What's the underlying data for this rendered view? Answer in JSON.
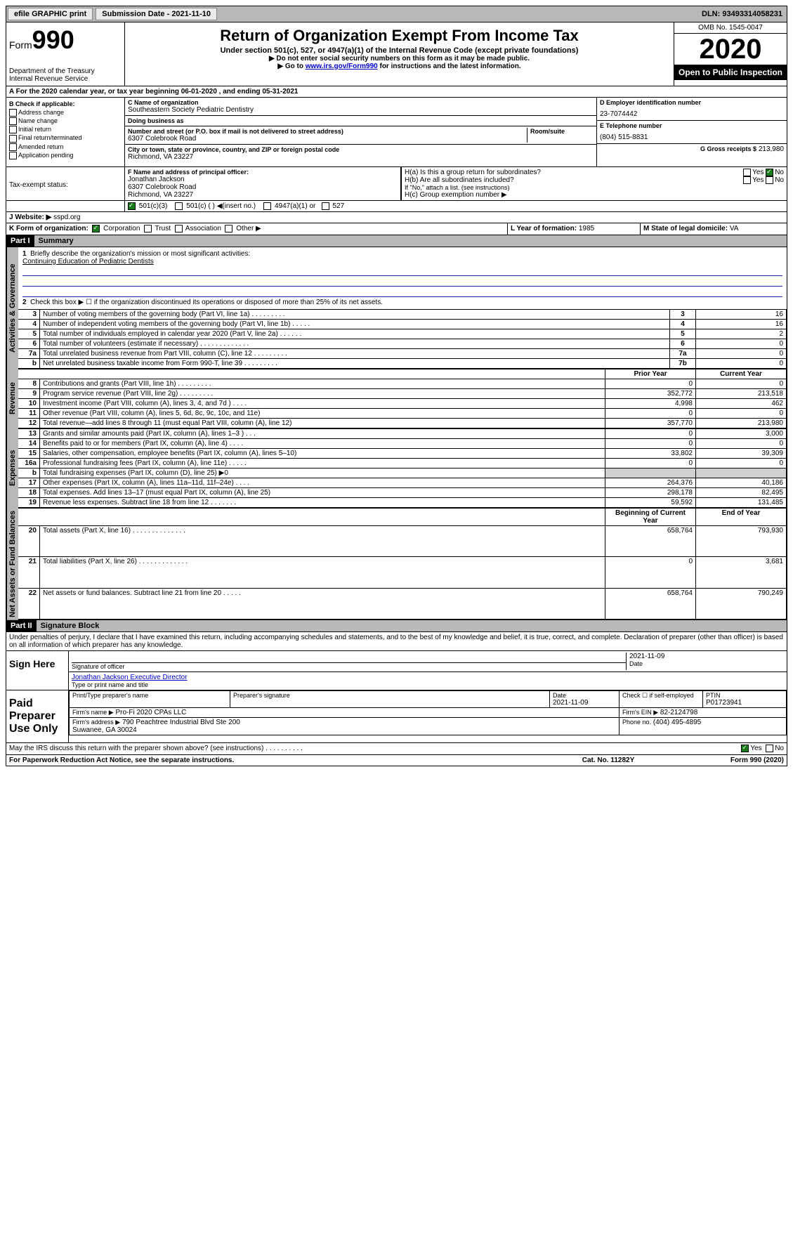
{
  "topbar": {
    "efile": "efile GRAPHIC print",
    "submission": "Submission Date - 2021-11-10",
    "dln": "DLN: 93493314058231"
  },
  "header": {
    "form_word": "Form",
    "form_num": "990",
    "dept": "Department of the Treasury\nInternal Revenue Service",
    "title": "Return of Organization Exempt From Income Tax",
    "sub1": "Under section 501(c), 527, or 4947(a)(1) of the Internal Revenue Code (except private foundations)",
    "sub2a": "Do not enter social security numbers on this form as it may be made public.",
    "sub2b_pre": "Go to ",
    "sub2b_link": "www.irs.gov/Form990",
    "sub2b_post": " for instructions and the latest information.",
    "omb": "OMB No. 1545-0047",
    "year": "2020",
    "inspect": "Open to Public Inspection"
  },
  "row_a": "A For the 2020 calendar year, or tax year beginning 06-01-2020    , and ending 05-31-2021",
  "col_b": {
    "hdr": "B Check if applicable:",
    "items": [
      "Address change",
      "Name change",
      "Initial return",
      "Final return/terminated",
      "Amended return",
      "Application pending"
    ]
  },
  "col_c": {
    "name_lbl": "C Name of organization",
    "name": "Southeastern Society Pediatric Dentistry",
    "dba_lbl": "Doing business as",
    "dba": "",
    "addr_lbl": "Number and street (or P.O. box if mail is not delivered to street address)",
    "room_lbl": "Room/suite",
    "addr": "6307 Colebrook Road",
    "city_lbl": "City or town, state or province, country, and ZIP or foreign postal code",
    "city": "Richmond, VA  23227"
  },
  "col_d": {
    "ein_lbl": "D Employer identification number",
    "ein": "23-7074442",
    "tel_lbl": "E Telephone number",
    "tel": "(804) 515-8831",
    "gross_lbl": "G Gross receipts $",
    "gross": "213,980"
  },
  "section_f": {
    "lbl": "F  Name and address of principal officer:",
    "name": "Jonathan Jackson",
    "addr1": "6307 Colebrook Road",
    "addr2": "Richmond, VA  23227"
  },
  "section_h": {
    "ha": "H(a)  Is this a group return for subordinates?",
    "hb": "H(b)  Are all subordinates included?",
    "hb_note": "If \"No,\" attach a list. (see instructions)",
    "hc": "H(c)  Group exemption number ▶",
    "yes": "Yes",
    "no": "No"
  },
  "tax_status": {
    "lbl": "Tax-exempt status:",
    "o1": "501(c)(3)",
    "o2": "501(c) (  ) ◀(insert no.)",
    "o3": "4947(a)(1) or",
    "o4": "527"
  },
  "website": {
    "lbl": "J   Website: ▶",
    "val": "sspd.org"
  },
  "row_k": {
    "lbl": "K Form of organization:",
    "o1": "Corporation",
    "o2": "Trust",
    "o3": "Association",
    "o4": "Other ▶",
    "l_lbl": "L Year of formation:",
    "l_val": "1985",
    "m_lbl": "M State of legal domicile:",
    "m_val": "VA"
  },
  "part1": {
    "hdr": "Part I",
    "title": "Summary",
    "q1": "Briefly describe the organization's mission or most significant activities:",
    "mission": "Continuing Education of Pediatric Dentists",
    "q2": "Check this box ▶ ☐  if the organization discontinued its operations or disposed of more than 25% of its net assets.",
    "vtab_gov": "Activities & Governance",
    "vtab_rev": "Revenue",
    "vtab_exp": "Expenses",
    "vtab_net": "Net Assets or Fund Balances",
    "rows_gov": [
      {
        "n": "3",
        "d": "Number of voting members of the governing body (Part VI, line 1a)   .    .    .    .    .    .    .    .    .",
        "b": "3",
        "v": "16"
      },
      {
        "n": "4",
        "d": "Number of independent voting members of the governing body (Part VI, line 1b)   .    .    .    .    .",
        "b": "4",
        "v": "16"
      },
      {
        "n": "5",
        "d": "Total number of individuals employed in calendar year 2020 (Part V, line 2a)   .    .    .    .    .    .",
        "b": "5",
        "v": "2"
      },
      {
        "n": "6",
        "d": "Total number of volunteers (estimate if necessary)   .    .    .    .    .    .    .    .    .    .    .    .    .",
        "b": "6",
        "v": "0"
      },
      {
        "n": "7a",
        "d": "Total unrelated business revenue from Part VIII, column (C), line 12   .    .    .    .    .    .    .    .    .",
        "b": "7a",
        "v": "0"
      },
      {
        "n": "b",
        "d": "Net unrelated business taxable income from Form 990-T, line 39   .    .    .    .    .    .    .    .    .",
        "b": "7b",
        "v": "0"
      }
    ],
    "col_hdrs": {
      "prior": "Prior Year",
      "current": "Current Year",
      "begin": "Beginning of Current Year",
      "end": "End of Year"
    },
    "rows_rev": [
      {
        "n": "8",
        "d": "Contributions and grants (Part VIII, line 1h)   .    .    .    .    .    .    .    .    .",
        "p": "0",
        "c": "0"
      },
      {
        "n": "9",
        "d": "Program service revenue (Part VIII, line 2g)   .    .    .    .    .    .    .    .    .",
        "p": "352,772",
        "c": "213,518"
      },
      {
        "n": "10",
        "d": "Investment income (Part VIII, column (A), lines 3, 4, and 7d )   .    .    .    .",
        "p": "4,998",
        "c": "462"
      },
      {
        "n": "11",
        "d": "Other revenue (Part VIII, column (A), lines 5, 6d, 8c, 9c, 10c, and 11e)",
        "p": "0",
        "c": "0"
      },
      {
        "n": "12",
        "d": "Total revenue—add lines 8 through 11 (must equal Part VIII, column (A), line 12)",
        "p": "357,770",
        "c": "213,980"
      }
    ],
    "rows_exp": [
      {
        "n": "13",
        "d": "Grants and similar amounts paid (Part IX, column (A), lines 1–3 )   .    .    .",
        "p": "0",
        "c": "3,000"
      },
      {
        "n": "14",
        "d": "Benefits paid to or for members (Part IX, column (A), line 4)   .    .    .    .",
        "p": "0",
        "c": "0"
      },
      {
        "n": "15",
        "d": "Salaries, other compensation, employee benefits (Part IX, column (A), lines 5–10)",
        "p": "33,802",
        "c": "39,309"
      },
      {
        "n": "16a",
        "d": "Professional fundraising fees (Part IX, column (A), line 11e)   .    .    .    .    .",
        "p": "0",
        "c": "0"
      },
      {
        "n": "b",
        "d": "Total fundraising expenses (Part IX, column (D), line 25) ▶0",
        "p": "",
        "c": "",
        "shade": true
      },
      {
        "n": "17",
        "d": "Other expenses (Part IX, column (A), lines 11a–11d, 11f–24e)   .    .    .    .",
        "p": "264,376",
        "c": "40,186"
      },
      {
        "n": "18",
        "d": "Total expenses. Add lines 13–17 (must equal Part IX, column (A), line 25)",
        "p": "298,178",
        "c": "82,495"
      },
      {
        "n": "19",
        "d": "Revenue less expenses. Subtract line 18 from line 12   .    .    .    .    .    .    .",
        "p": "59,592",
        "c": "131,485"
      }
    ],
    "rows_net": [
      {
        "n": "20",
        "d": "Total assets (Part X, line 16)   .    .    .    .    .    .    .    .    .    .    .    .    .    .",
        "p": "658,764",
        "c": "793,930"
      },
      {
        "n": "21",
        "d": "Total liabilities (Part X, line 26)   .    .    .    .    .    .    .    .    .    .    .    .    .",
        "p": "0",
        "c": "3,681"
      },
      {
        "n": "22",
        "d": "Net assets or fund balances. Subtract line 21 from line 20   .    .    .    .    .",
        "p": "658,764",
        "c": "790,249"
      }
    ]
  },
  "part2": {
    "hdr": "Part II",
    "title": "Signature Block",
    "decl": "Under penalties of perjury, I declare that I have examined this return, including accompanying schedules and statements, and to the best of my knowledge and belief, it is true, correct, and complete. Declaration of preparer (other than officer) is based on all information of which preparer has any knowledge.",
    "sign_here": "Sign Here",
    "sig_officer": "Signature of officer",
    "date": "Date",
    "date_val": "2021-11-09",
    "name_title_lbl": "Type or print name and title",
    "name_title": "Jonathan Jackson  Executive Director",
    "paid": "Paid Preparer Use Only",
    "prep_name_lbl": "Print/Type preparer's name",
    "prep_sig_lbl": "Preparer's signature",
    "prep_date_lbl": "Date",
    "prep_date": "2021-11-09",
    "self_emp": "Check ☐ if self-employed",
    "ptin_lbl": "PTIN",
    "ptin": "P01723941",
    "firm_name_lbl": "Firm's name    ▶",
    "firm_name": "Pro-Fi 2020 CPAs LLC",
    "firm_ein_lbl": "Firm's EIN ▶",
    "firm_ein": "82-2124798",
    "firm_addr_lbl": "Firm's address ▶",
    "firm_addr": "790 Peachtree Industrial Blvd Ste 200\nSuwanee, GA  30024",
    "phone_lbl": "Phone no.",
    "phone": "(404) 495-4895",
    "discuss": "May the IRS discuss this return with the preparer shown above? (see instructions)   .    .    .    .    .    .    .    .    .    .",
    "yes": "Yes",
    "no": "No"
  },
  "footer": {
    "left": "For Paperwork Reduction Act Notice, see the separate instructions.",
    "mid": "Cat. No. 11282Y",
    "right": "Form 990 (2020)"
  }
}
